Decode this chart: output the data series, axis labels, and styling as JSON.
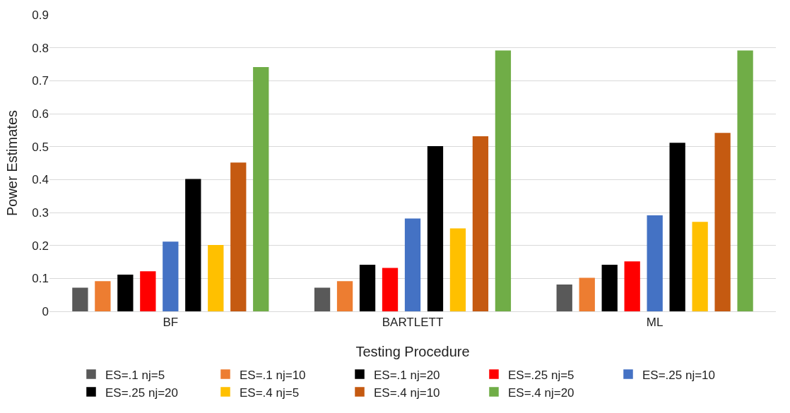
{
  "chart_data": {
    "type": "bar",
    "xlabel": "Testing Procedure",
    "ylabel": "Power Estimates",
    "categories": [
      "BF",
      "BARTLETT",
      "ML"
    ],
    "series": [
      {
        "name": "ES=.1 nj=5",
        "color": "#595959",
        "values": [
          0.07,
          0.07,
          0.08
        ]
      },
      {
        "name": "ES=.1 nj=10",
        "color": "#ed7d31",
        "values": [
          0.09,
          0.09,
          0.1
        ]
      },
      {
        "name": "ES=.1 nj=20",
        "color": "#000000",
        "values": [
          0.11,
          0.14,
          0.14
        ]
      },
      {
        "name": "ES=.25 nj=5",
        "color": "#ff0000",
        "values": [
          0.12,
          0.13,
          0.15
        ]
      },
      {
        "name": "ES=.25 nj=10",
        "color": "#4472c4",
        "values": [
          0.21,
          0.28,
          0.29
        ]
      },
      {
        "name": "ES=.25 nj=20",
        "color": "#000000",
        "values": [
          0.4,
          0.5,
          0.51
        ]
      },
      {
        "name": "ES=.4 nj=5",
        "color": "#ffc000",
        "values": [
          0.2,
          0.25,
          0.27
        ]
      },
      {
        "name": "ES=.4 nj=10",
        "color": "#c55a11",
        "values": [
          0.45,
          0.53,
          0.54
        ]
      },
      {
        "name": "ES=.4 nj=20",
        "color": "#70ad47",
        "values": [
          0.74,
          0.79,
          0.79
        ]
      }
    ],
    "ylim": [
      0,
      0.9
    ],
    "yticks": [
      {
        "value": 0,
        "label": "0"
      },
      {
        "value": 0.1,
        "label": "0.1"
      },
      {
        "value": 0.2,
        "label": "0.2"
      },
      {
        "value": 0.3,
        "label": "0.3"
      },
      {
        "value": 0.4,
        "label": "0.4"
      },
      {
        "value": 0.5,
        "label": "0.5"
      },
      {
        "value": 0.6,
        "label": "0.6"
      },
      {
        "value": 0.7,
        "label": "0.7"
      },
      {
        "value": 0.8,
        "label": "0.8"
      },
      {
        "value": 0.9,
        "label": "0.9"
      }
    ],
    "grid": "y",
    "legend": "bottom"
  }
}
